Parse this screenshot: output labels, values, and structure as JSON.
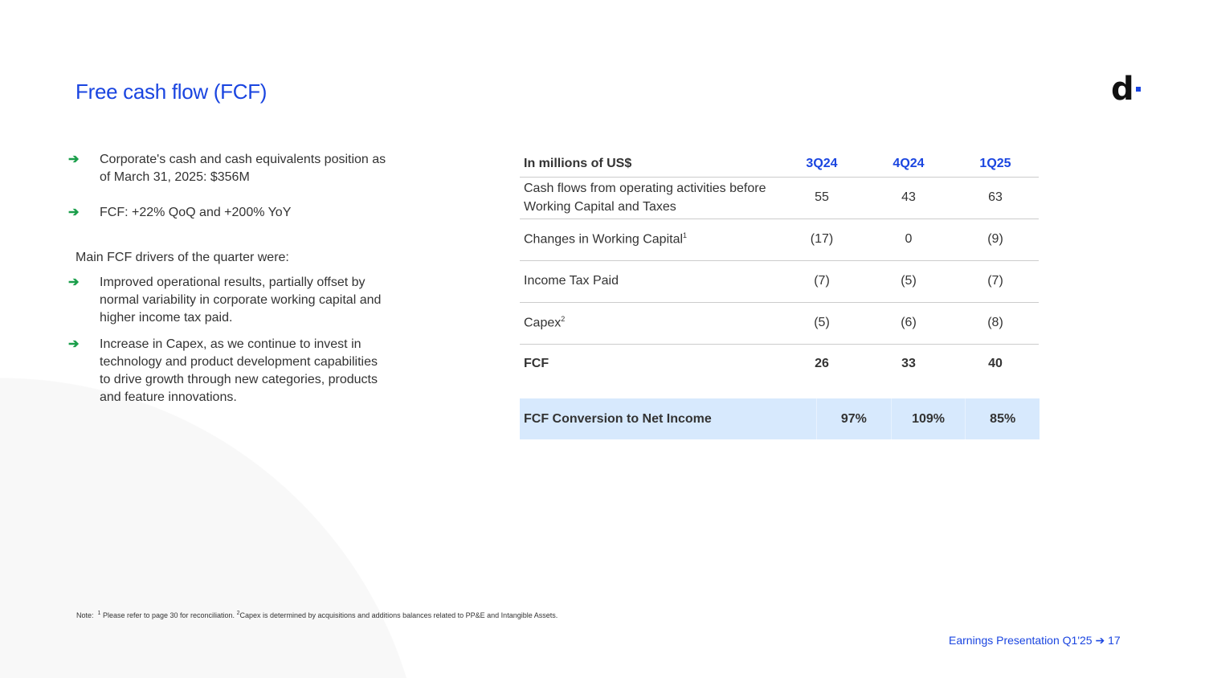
{
  "title": "Free cash flow (FCF)",
  "logo": "d",
  "bullets_top": [
    "Corporate's cash and cash equivalents position as of March 31, 2025: $356M",
    "FCF: +22% QoQ and +200% YoY"
  ],
  "drivers_heading": "Main FCF drivers of the quarter were:",
  "bullets_drivers": [
    "Improved operational results, partially offset by normal variability in corporate working capital and higher income tax paid.",
    "Increase in Capex, as we continue to invest in technology and product development capabilities to drive growth through new categories, products and feature innovations."
  ],
  "arrow_icon": "➔",
  "table": {
    "header": [
      "In millions of US$",
      "3Q24",
      "4Q24",
      "1Q25"
    ],
    "rows": [
      {
        "label": "Cash flows from operating activities before Working Capital and Taxes",
        "sup": "",
        "values": [
          "55",
          "43",
          "63"
        ]
      },
      {
        "label": "Changes in Working Capital",
        "sup": "1",
        "values": [
          "(17)",
          "0",
          "(9)"
        ]
      },
      {
        "label": "Income Tax Paid",
        "sup": "",
        "values": [
          "(7)",
          "(5)",
          "(7)"
        ]
      },
      {
        "label": "Capex",
        "sup": "2",
        "values": [
          "(5)",
          "(6)",
          "(8)"
        ]
      },
      {
        "label": "FCF",
        "sup": "",
        "values": [
          "26",
          "33",
          "40"
        ]
      }
    ],
    "conversion": {
      "label": "FCF Conversion to Net Income",
      "values": [
        "97%",
        "109%",
        "85%"
      ]
    }
  },
  "note": {
    "prefix": "Note:",
    "sup1": "1",
    "text1": "Please refer to page 30 for reconciliation.",
    "sup2": "2",
    "text2": "Capex is determined by acquisitions and additions balances related to PP&E and Intangible Assets."
  },
  "footer": {
    "label": "Earnings Presentation Q1'25",
    "arrow": "➔",
    "page": "17"
  },
  "colors": {
    "accent": "#1a45e0",
    "arrow": "#1a9e4a",
    "highlight": "#d7e9fd"
  }
}
